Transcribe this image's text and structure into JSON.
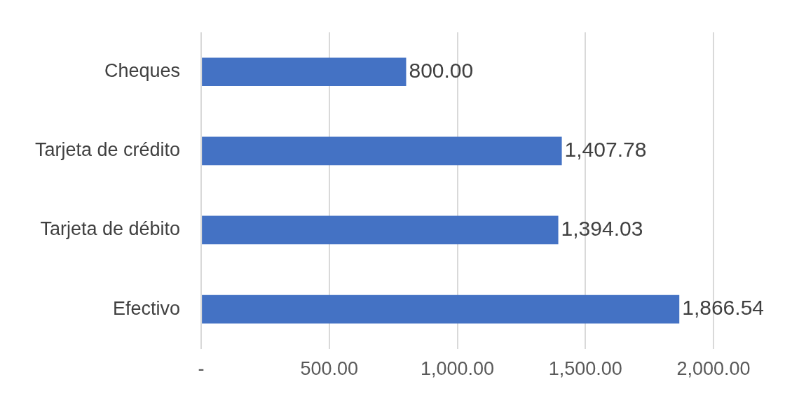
{
  "chart_data": {
    "type": "bar",
    "orientation": "horizontal",
    "categories": [
      "Cheques",
      "Tarjeta de crédito",
      "Tarjeta de débito",
      "Efectivo"
    ],
    "values": [
      800,
      1407.78,
      1394.03,
      1866.54
    ],
    "value_labels": [
      "800.00",
      "1,407.78",
      "1,394.03",
      "1,866.54"
    ],
    "color": "#4472c4",
    "xlim": [
      0,
      2000
    ],
    "xticks": [
      {
        "value": 0,
        "label": "-"
      },
      {
        "value": 500,
        "label": "500.00"
      },
      {
        "value": 1000,
        "label": "1,000.00"
      },
      {
        "value": 1500,
        "label": "1,500.00"
      },
      {
        "value": 2000,
        "label": "2,000.00"
      }
    ],
    "grid": "x",
    "legend": false
  }
}
